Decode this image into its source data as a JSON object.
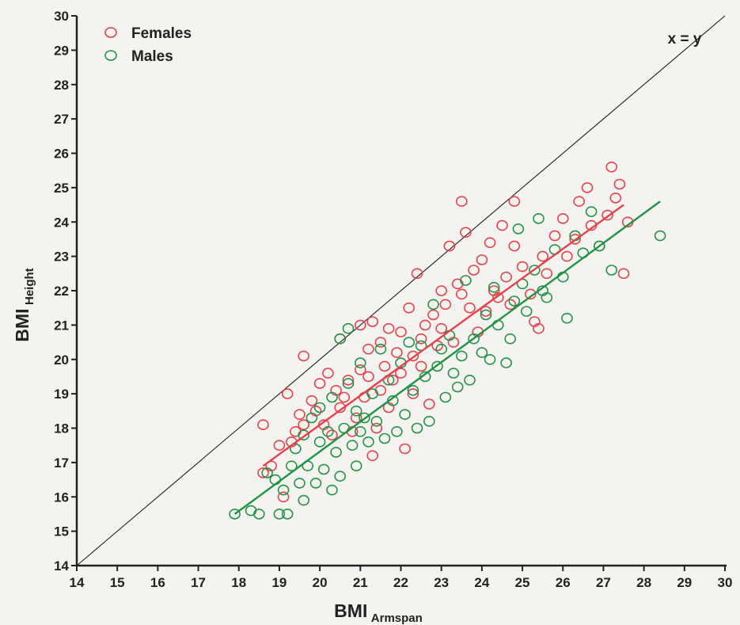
{
  "chart_data": {
    "type": "scatter",
    "xlabel": "BMI",
    "xlabel_sub": "Armspan",
    "ylabel": "BMI",
    "ylabel_sub": "Height",
    "xlim": [
      14,
      30
    ],
    "ylim": [
      14,
      30
    ],
    "xticks": [
      "14",
      "15",
      "16",
      "17",
      "18",
      "19",
      "20",
      "21",
      "22",
      "23",
      "24",
      "25",
      "26",
      "27",
      "28",
      "29",
      "30"
    ],
    "yticks": [
      "14",
      "15",
      "16",
      "17",
      "18",
      "19",
      "20",
      "21",
      "22",
      "23",
      "24",
      "25",
      "26",
      "27",
      "28",
      "29",
      "30"
    ],
    "grid": false,
    "legend_position": "top-left",
    "identity_line": {
      "label": "x = y",
      "x": [
        14,
        30
      ],
      "y": [
        14,
        30
      ],
      "color": "#222222"
    },
    "series": [
      {
        "name": "Females",
        "color": "#e8404a",
        "fit": {
          "x": [
            18.6,
            27.5
          ],
          "y": [
            16.9,
            24.5
          ]
        },
        "points": [
          [
            18.6,
            18.1
          ],
          [
            18.6,
            16.7
          ],
          [
            18.8,
            16.9
          ],
          [
            19.0,
            17.5
          ],
          [
            19.1,
            16.0
          ],
          [
            19.2,
            19.0
          ],
          [
            19.3,
            17.6
          ],
          [
            19.4,
            17.9
          ],
          [
            19.5,
            18.4
          ],
          [
            19.6,
            18.1
          ],
          [
            19.6,
            20.1
          ],
          [
            19.8,
            18.8
          ],
          [
            19.9,
            18.5
          ],
          [
            20.0,
            19.3
          ],
          [
            20.1,
            18.1
          ],
          [
            20.2,
            19.6
          ],
          [
            20.3,
            17.8
          ],
          [
            20.4,
            19.1
          ],
          [
            20.5,
            20.6
          ],
          [
            20.5,
            18.6
          ],
          [
            20.6,
            18.9
          ],
          [
            20.7,
            19.4
          ],
          [
            20.8,
            17.9
          ],
          [
            20.9,
            18.3
          ],
          [
            21.0,
            19.7
          ],
          [
            21.0,
            21.0
          ],
          [
            21.1,
            18.9
          ],
          [
            21.2,
            19.5
          ],
          [
            21.2,
            20.3
          ],
          [
            21.3,
            21.1
          ],
          [
            21.3,
            17.2
          ],
          [
            21.4,
            18.0
          ],
          [
            21.5,
            19.1
          ],
          [
            21.5,
            20.5
          ],
          [
            21.6,
            19.8
          ],
          [
            21.7,
            20.9
          ],
          [
            21.7,
            18.6
          ],
          [
            21.8,
            19.4
          ],
          [
            21.9,
            20.2
          ],
          [
            22.0,
            19.6
          ],
          [
            22.0,
            20.8
          ],
          [
            22.1,
            17.4
          ],
          [
            22.2,
            21.5
          ],
          [
            22.3,
            20.1
          ],
          [
            22.3,
            19.0
          ],
          [
            22.4,
            22.5
          ],
          [
            22.5,
            20.6
          ],
          [
            22.5,
            19.8
          ],
          [
            22.6,
            21.0
          ],
          [
            22.7,
            18.7
          ],
          [
            22.8,
            21.3
          ],
          [
            22.9,
            20.4
          ],
          [
            23.0,
            22.0
          ],
          [
            23.0,
            20.9
          ],
          [
            23.1,
            21.6
          ],
          [
            23.2,
            23.3
          ],
          [
            23.3,
            20.5
          ],
          [
            23.4,
            22.2
          ],
          [
            23.5,
            24.6
          ],
          [
            23.5,
            21.9
          ],
          [
            23.6,
            23.7
          ],
          [
            23.7,
            21.5
          ],
          [
            23.8,
            22.6
          ],
          [
            23.9,
            20.8
          ],
          [
            24.0,
            22.9
          ],
          [
            24.1,
            21.4
          ],
          [
            24.2,
            23.4
          ],
          [
            24.3,
            22.0
          ],
          [
            24.4,
            21.8
          ],
          [
            24.5,
            23.9
          ],
          [
            24.6,
            22.4
          ],
          [
            24.7,
            21.6
          ],
          [
            24.8,
            23.3
          ],
          [
            24.8,
            24.6
          ],
          [
            25.0,
            22.7
          ],
          [
            25.2,
            21.9
          ],
          [
            25.3,
            21.1
          ],
          [
            25.4,
            20.9
          ],
          [
            25.5,
            23.0
          ],
          [
            25.6,
            22.5
          ],
          [
            25.8,
            23.6
          ],
          [
            26.0,
            24.1
          ],
          [
            26.1,
            23.0
          ],
          [
            26.3,
            23.5
          ],
          [
            26.4,
            24.6
          ],
          [
            26.6,
            25.0
          ],
          [
            26.7,
            23.9
          ],
          [
            26.9,
            23.3
          ],
          [
            27.1,
            24.2
          ],
          [
            27.2,
            25.6
          ],
          [
            27.3,
            24.7
          ],
          [
            27.4,
            25.1
          ],
          [
            27.5,
            22.5
          ],
          [
            27.6,
            24.0
          ]
        ]
      },
      {
        "name": "Males",
        "color": "#1f9446",
        "fit": {
          "x": [
            17.9,
            28.4
          ],
          "y": [
            15.5,
            24.6
          ]
        },
        "points": [
          [
            17.9,
            15.5
          ],
          [
            18.3,
            15.6
          ],
          [
            18.5,
            15.5
          ],
          [
            18.7,
            16.7
          ],
          [
            18.9,
            16.5
          ],
          [
            19.0,
            15.5
          ],
          [
            19.1,
            16.2
          ],
          [
            19.2,
            15.5
          ],
          [
            19.3,
            16.9
          ],
          [
            19.4,
            17.4
          ],
          [
            19.5,
            16.4
          ],
          [
            19.6,
            15.9
          ],
          [
            19.6,
            17.8
          ],
          [
            19.7,
            16.9
          ],
          [
            19.8,
            18.3
          ],
          [
            19.9,
            16.4
          ],
          [
            20.0,
            17.6
          ],
          [
            20.0,
            18.6
          ],
          [
            20.1,
            16.8
          ],
          [
            20.2,
            17.9
          ],
          [
            20.3,
            16.2
          ],
          [
            20.3,
            18.9
          ],
          [
            20.4,
            17.3
          ],
          [
            20.5,
            20.6
          ],
          [
            20.5,
            16.6
          ],
          [
            20.6,
            18.0
          ],
          [
            20.7,
            19.3
          ],
          [
            20.7,
            20.9
          ],
          [
            20.8,
            17.5
          ],
          [
            20.9,
            18.5
          ],
          [
            20.9,
            16.9
          ],
          [
            21.0,
            17.9
          ],
          [
            21.0,
            19.9
          ],
          [
            21.1,
            18.3
          ],
          [
            21.2,
            17.6
          ],
          [
            21.3,
            19.0
          ],
          [
            21.4,
            18.2
          ],
          [
            21.5,
            20.3
          ],
          [
            21.6,
            17.7
          ],
          [
            21.7,
            19.4
          ],
          [
            21.8,
            18.8
          ],
          [
            21.9,
            17.9
          ],
          [
            22.0,
            19.9
          ],
          [
            22.1,
            18.4
          ],
          [
            22.2,
            20.5
          ],
          [
            22.3,
            19.1
          ],
          [
            22.4,
            18.0
          ],
          [
            22.5,
            20.4
          ],
          [
            22.6,
            19.5
          ],
          [
            22.7,
            18.2
          ],
          [
            22.8,
            21.6
          ],
          [
            22.9,
            19.8
          ],
          [
            23.0,
            20.3
          ],
          [
            23.1,
            18.9
          ],
          [
            23.2,
            20.7
          ],
          [
            23.3,
            19.6
          ],
          [
            23.4,
            19.2
          ],
          [
            23.5,
            20.1
          ],
          [
            23.6,
            22.3
          ],
          [
            23.7,
            19.4
          ],
          [
            23.8,
            20.6
          ],
          [
            24.0,
            20.2
          ],
          [
            24.1,
            21.3
          ],
          [
            24.2,
            20.0
          ],
          [
            24.3,
            22.1
          ],
          [
            24.4,
            21.0
          ],
          [
            24.6,
            19.9
          ],
          [
            24.7,
            20.6
          ],
          [
            24.8,
            21.7
          ],
          [
            24.9,
            23.8
          ],
          [
            25.0,
            22.2
          ],
          [
            25.1,
            21.4
          ],
          [
            25.3,
            22.6
          ],
          [
            25.4,
            24.1
          ],
          [
            25.5,
            22.0
          ],
          [
            25.6,
            21.8
          ],
          [
            25.8,
            23.2
          ],
          [
            26.0,
            22.4
          ],
          [
            26.1,
            21.2
          ],
          [
            26.3,
            23.6
          ],
          [
            26.5,
            23.1
          ],
          [
            26.7,
            24.3
          ],
          [
            26.9,
            23.3
          ],
          [
            27.2,
            22.6
          ],
          [
            28.4,
            23.6
          ]
        ]
      }
    ]
  }
}
